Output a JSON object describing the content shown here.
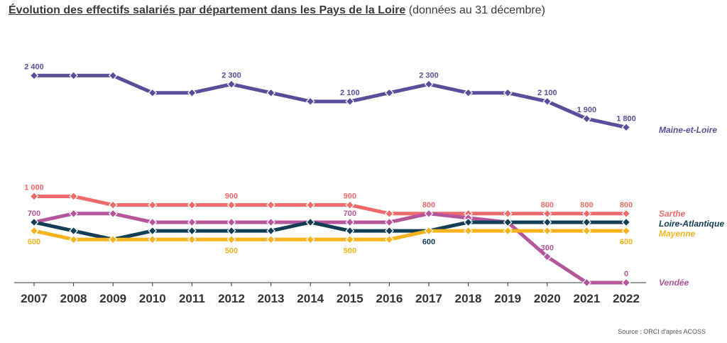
{
  "title": "Évolution des effectifs salariés par département dans les Pays de la Loire",
  "subtitle": "(données au 31 décembre)",
  "source": "Source : ORCI d'après ACOSS",
  "chart_data": {
    "type": "line",
    "x": [
      "2007",
      "2008",
      "2009",
      "2010",
      "2011",
      "2012",
      "2013",
      "2014",
      "2015",
      "2016",
      "2017",
      "2018",
      "2019",
      "2020",
      "2021",
      "2022"
    ],
    "ylim": [
      0,
      2600
    ],
    "grid": false,
    "legend": "right, at line ends",
    "series": [
      {
        "name": "Maine-et-Loire",
        "color": "#5b4d99",
        "values": [
          2400,
          2400,
          2400,
          2200,
          2200,
          2300,
          2200,
          2100,
          2100,
          2200,
          2300,
          2200,
          2200,
          2100,
          1900,
          1800
        ],
        "labels": {
          "0": "2 400",
          "5": "2 300",
          "8": "2 100",
          "10": "2 300",
          "13": "2 100",
          "14": "1 900",
          "15": "1 800"
        },
        "label_pos": "above"
      },
      {
        "name": "Sarthe",
        "color": "#f06a6a",
        "values": [
          1000,
          1000,
          900,
          900,
          900,
          900,
          900,
          900,
          900,
          800,
          800,
          800,
          800,
          800,
          800,
          800
        ],
        "labels": {
          "0": "1 000",
          "5": "900",
          "8": "900",
          "10": "800",
          "13": "800",
          "14": "800",
          "15": "800"
        },
        "label_pos": "above"
      },
      {
        "name": "Vendée",
        "color": "#b5559b",
        "values": [
          700,
          800,
          800,
          700,
          700,
          700,
          700,
          700,
          700,
          700,
          800,
          750,
          700,
          300,
          0,
          0
        ],
        "labels": {
          "0": "700",
          "8": "700",
          "13": "300",
          "15": "0"
        },
        "label_pos": "above"
      },
      {
        "name": "Loire-Atlantique",
        "color": "#0f3e55",
        "values": [
          700,
          600,
          500,
          600,
          600,
          600,
          600,
          700,
          600,
          600,
          600,
          700,
          700,
          700,
          700,
          700
        ],
        "labels": {
          "10": "600"
        },
        "label_pos": "below"
      },
      {
        "name": "Mayenne",
        "color": "#f6b31b",
        "values": [
          600,
          500,
          500,
          500,
          500,
          500,
          500,
          500,
          500,
          500,
          600,
          600,
          600,
          600,
          600,
          600
        ],
        "labels": {
          "0": "600",
          "5": "500",
          "8": "500",
          "15": "600"
        },
        "label_pos": "below"
      }
    ]
  }
}
